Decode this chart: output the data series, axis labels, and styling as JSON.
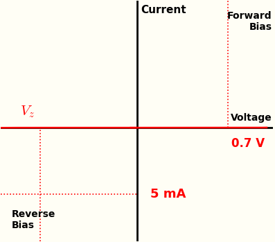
{
  "bg_color": "#FFFEF5",
  "curve_color": "#FF0000",
  "axis_color": "#000000",
  "fill_color": "#FFFF99",
  "vz": -0.75,
  "vf": 0.7,
  "i_breakdown": -5.0,
  "xlim": [
    -1.05,
    1.05
  ],
  "ylim": [
    -8.5,
    9.5
  ],
  "labels": {
    "current": "Current",
    "voltage": "Voltage",
    "forward_bias": "Forward\nBias",
    "reverse_bias": "Reverse\nBias",
    "v07": "0.7 V",
    "i5ma": "5 mA",
    "vz": "$V_z$"
  },
  "label_colors": {
    "vz": "#FF0000",
    "v07": "#FF0000",
    "i5ma": "#FF0000",
    "current": "#000000",
    "voltage": "#000000",
    "forward_bias": "#000000",
    "reverse_bias": "#000000"
  },
  "fontsizes": {
    "current": 11,
    "voltage": 10,
    "forward_bias": 10,
    "reverse_bias": 10,
    "vz": 15,
    "v07": 12,
    "i5ma": 13
  }
}
